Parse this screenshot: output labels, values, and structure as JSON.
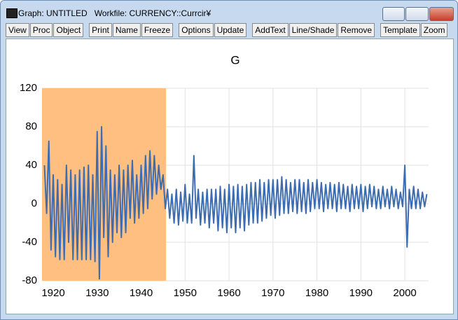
{
  "window": {
    "title": "Graph: UNTITLED   Workfile: CURRENCY::Currcir¥",
    "toolbar": [
      [
        "View",
        "Proc",
        "Object"
      ],
      [
        "Print",
        "Name",
        "Freeze"
      ],
      [
        "Options",
        "Update"
      ],
      [
        "AddText",
        "Line/Shade",
        "Remove"
      ],
      [
        "Template",
        "Zoom"
      ]
    ]
  },
  "chart_data": {
    "type": "line",
    "title": "G",
    "x": [
      1918,
      1918.5,
      1919,
      1919.5,
      1920,
      1920.5,
      1921,
      1921.5,
      1922,
      1922.5,
      1923,
      1923.5,
      1924,
      1924.5,
      1925,
      1925.5,
      1926,
      1926.5,
      1927,
      1927.5,
      1928,
      1928.5,
      1929,
      1929.5,
      1930,
      1930.5,
      1931,
      1931.5,
      1932,
      1932.5,
      1933,
      1933.5,
      1934,
      1934.5,
      1935,
      1935.5,
      1936,
      1936.5,
      1937,
      1937.5,
      1938,
      1938.5,
      1939,
      1939.5,
      1940,
      1940.5,
      1941,
      1941.5,
      1942,
      1942.5,
      1943,
      1943.5,
      1944,
      1944.5,
      1945,
      1945.5,
      1946,
      1946.5,
      1947,
      1947.5,
      1948,
      1948.5,
      1949,
      1949.5,
      1950,
      1950.5,
      1951,
      1951.5,
      1952,
      1952.5,
      1953,
      1953.5,
      1954,
      1954.5,
      1955,
      1955.5,
      1956,
      1956.5,
      1957,
      1957.5,
      1958,
      1958.5,
      1959,
      1959.5,
      1960,
      1960.5,
      1961,
      1961.5,
      1962,
      1962.5,
      1963,
      1963.5,
      1964,
      1964.5,
      1965,
      1965.5,
      1966,
      1966.5,
      1967,
      1967.5,
      1968,
      1968.5,
      1969,
      1969.5,
      1970,
      1970.5,
      1971,
      1971.5,
      1972,
      1972.5,
      1973,
      1973.5,
      1974,
      1974.5,
      1975,
      1975.5,
      1976,
      1976.5,
      1977,
      1977.5,
      1978,
      1978.5,
      1979,
      1979.5,
      1980,
      1980.5,
      1981,
      1981.5,
      1982,
      1982.5,
      1983,
      1983.5,
      1984,
      1984.5,
      1985,
      1985.5,
      1986,
      1986.5,
      1987,
      1987.5,
      1988,
      1988.5,
      1989,
      1989.5,
      1990,
      1990.5,
      1991,
      1991.5,
      1992,
      1992.5,
      1993,
      1993.5,
      1994,
      1994.5,
      1995,
      1995.5,
      1996,
      1996.5,
      1997,
      1997.5,
      1998,
      1998.5,
      1999,
      1999.5,
      2000,
      2000.5,
      2001,
      2001.5,
      2002,
      2002.5,
      2003,
      2003.5,
      2004,
      2004.5,
      2005
    ],
    "series": [
      {
        "color": "#3d6db0",
        "values": [
          40,
          -10,
          65,
          -48,
          30,
          -55,
          25,
          -58,
          20,
          -58,
          40,
          -40,
          35,
          -58,
          30,
          -58,
          35,
          -58,
          38,
          -58,
          40,
          -58,
          30,
          -60,
          75,
          -78,
          80,
          -35,
          60,
          -55,
          35,
          -40,
          30,
          -30,
          40,
          -35,
          35,
          -30,
          40,
          -15,
          45,
          -20,
          30,
          -15,
          40,
          -10,
          50,
          -5,
          55,
          5,
          50,
          10,
          40,
          15,
          30,
          -5,
          15,
          -15,
          10,
          -20,
          15,
          -22,
          12,
          -18,
          20,
          -20,
          10,
          -20,
          50,
          -15,
          15,
          -22,
          12,
          -20,
          15,
          -25,
          15,
          -20,
          15,
          -28,
          18,
          -25,
          15,
          -30,
          20,
          -25,
          18,
          -30,
          20,
          -25,
          18,
          -28,
          20,
          -22,
          22,
          -20,
          22,
          -20,
          25,
          -18,
          22,
          -15,
          25,
          -12,
          25,
          -15,
          25,
          -12,
          28,
          -10,
          25,
          -10,
          22,
          -8,
          25,
          -10,
          25,
          -8,
          22,
          -10,
          25,
          -8,
          22,
          -5,
          25,
          -5,
          22,
          -8,
          20,
          -5,
          22,
          -5,
          20,
          -8,
          22,
          -5,
          20,
          -5,
          18,
          -8,
          20,
          -5,
          18,
          -5,
          20,
          -8,
          18,
          -5,
          20,
          -3,
          18,
          -5,
          15,
          -5,
          18,
          -3,
          15,
          -5,
          18,
          -3,
          15,
          -5,
          12,
          -3,
          40,
          -45,
          15,
          -5,
          18,
          -5,
          15,
          -5,
          12,
          -3,
          10
        ]
      }
    ],
    "xlim": [
      1917.45,
      2005.4
    ],
    "xticks": [
      1920,
      1930,
      1940,
      1950,
      1960,
      1970,
      1980,
      1990,
      2000
    ],
    "ylim": [
      -80,
      120
    ],
    "yticks": [
      -80,
      -40,
      0,
      40,
      80,
      120
    ],
    "grid": true,
    "shade": {
      "from": 1917.45,
      "to": 1945.66,
      "color": "#ffbf80"
    }
  }
}
